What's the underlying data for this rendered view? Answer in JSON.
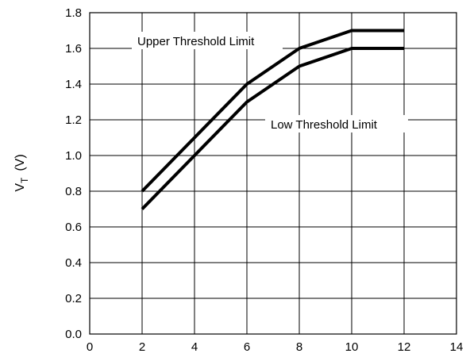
{
  "chart_data": {
    "type": "line",
    "title": "",
    "xlabel": "",
    "ylabel": "V",
    "ylabel_subscript": "T",
    "ylabel_unit": "(V)",
    "xlim": [
      0,
      14
    ],
    "ylim": [
      0.0,
      1.8
    ],
    "x_ticks": [
      "0",
      "2",
      "4",
      "6",
      "8",
      "10",
      "12",
      "14"
    ],
    "y_ticks": [
      "0.0",
      "0.2",
      "0.4",
      "0.6",
      "0.8",
      "1.0",
      "1.2",
      "1.4",
      "1.6",
      "1.8"
    ],
    "grid": true,
    "series": [
      {
        "name": "Upper Threshold Limit",
        "x": [
          2,
          4,
          6,
          8,
          10,
          12
        ],
        "values": [
          0.8,
          1.1,
          1.4,
          1.6,
          1.7,
          1.7
        ]
      },
      {
        "name": "Low Threshold Limit",
        "x": [
          2,
          4,
          6,
          8,
          10,
          12
        ],
        "values": [
          0.7,
          1.0,
          1.3,
          1.5,
          1.6,
          1.6
        ]
      }
    ],
    "annotations": [
      {
        "text": "Upper Threshold Limit"
      },
      {
        "text": "Low Threshold Limit"
      }
    ],
    "colors": {
      "lines": "#000000",
      "grid": "#000000",
      "background": "#ffffff"
    }
  }
}
